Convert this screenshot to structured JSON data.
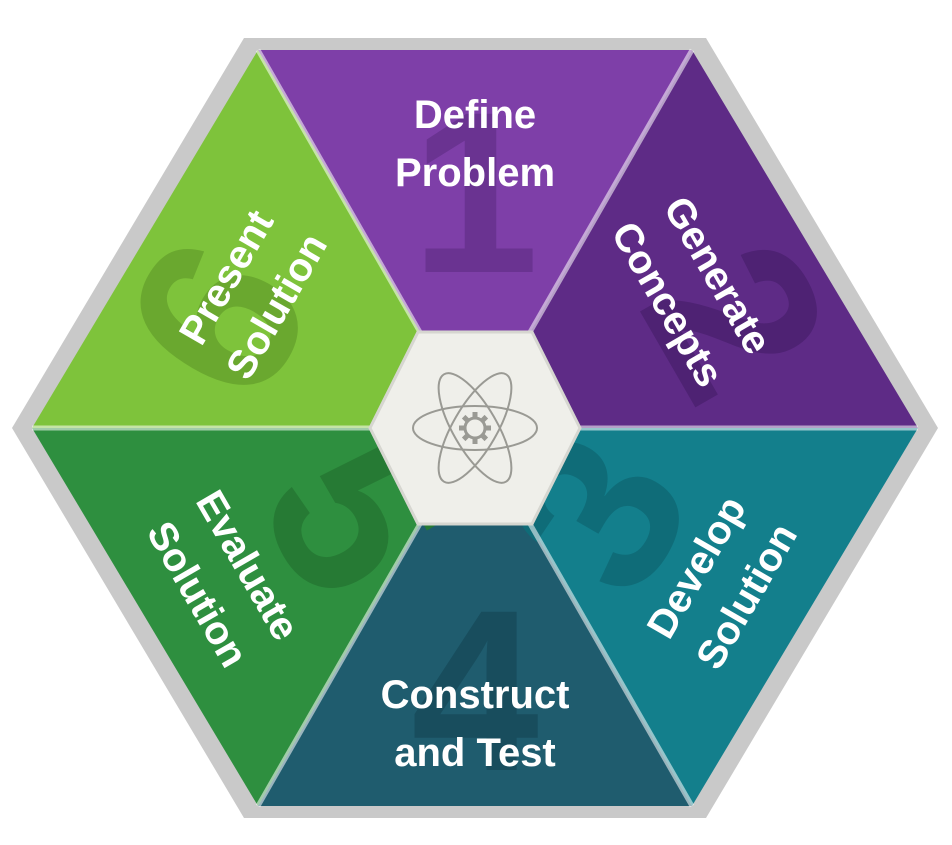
{
  "center_icon": "atom-gear-icon",
  "segments": [
    {
      "id": "define-problem",
      "number": "1",
      "lines": [
        "Define",
        "Problem"
      ],
      "color": "#7e3fa8",
      "numeral_color": "#6a3391"
    },
    {
      "id": "generate-concepts",
      "number": "2",
      "lines": [
        "Generate",
        "Concepts"
      ],
      "color": "#5e2b86",
      "numeral_color": "#4e2273"
    },
    {
      "id": "develop-solution",
      "number": "3",
      "lines": [
        "Develop",
        "Solution"
      ],
      "color": "#137f8c",
      "numeral_color": "#0f6c78"
    },
    {
      "id": "construct-and-test",
      "number": "4",
      "lines": [
        "Construct",
        "and Test"
      ],
      "color": "#1f5c6e",
      "numeral_color": "#184d5d"
    },
    {
      "id": "evaluate-solution",
      "number": "5",
      "lines": [
        "Evaluate",
        "Solution"
      ],
      "color": "#2e8f3f",
      "numeral_color": "#267a34"
    },
    {
      "id": "present-solution",
      "number": "6",
      "lines": [
        "Present",
        "Solution"
      ],
      "color": "#7ec33b",
      "numeral_color": "#6aa82f"
    }
  ],
  "colors": {
    "outer_border": "#c9c9c9",
    "divider": "#ffffff",
    "center_fill": "#efefea",
    "center_stroke": "#d6d6d0",
    "icon_stroke": "#9a9a94"
  }
}
